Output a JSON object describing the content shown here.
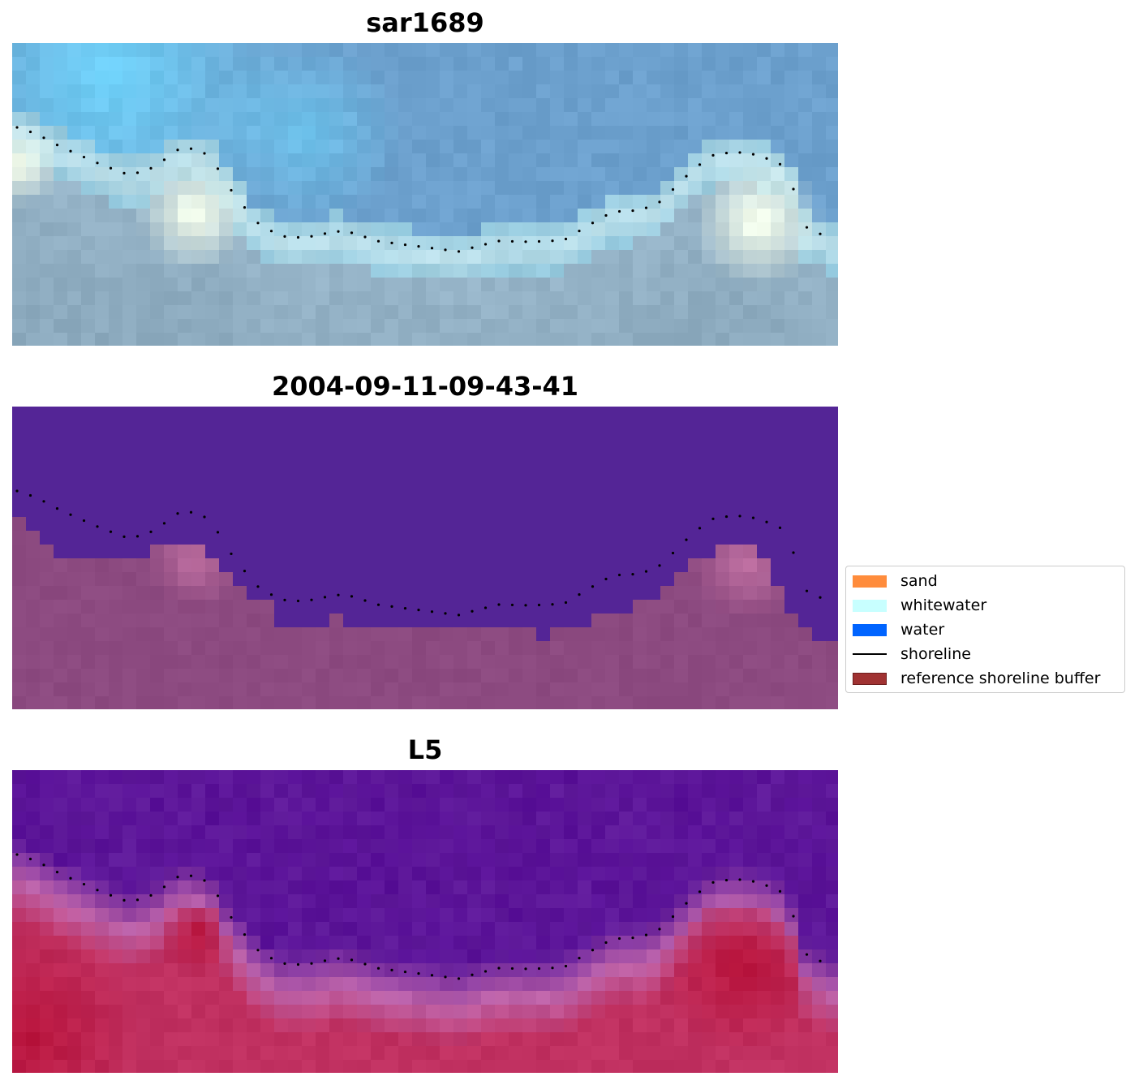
{
  "panels": [
    {
      "title": "sar1689",
      "style": "rgb"
    },
    {
      "title": "2004-09-11-09-43-41",
      "style": "classified"
    },
    {
      "title": "L5",
      "style": "index"
    }
  ],
  "legend": {
    "items": [
      {
        "label": "sand",
        "color": "#ff8c3c",
        "kind": "patch"
      },
      {
        "label": "whitewater",
        "color": "#c8ffff",
        "kind": "patch"
      },
      {
        "label": "water",
        "color": "#0064ff",
        "kind": "patch"
      },
      {
        "label": "shoreline",
        "color": "#000000",
        "kind": "line"
      },
      {
        "label": "reference shoreline buffer",
        "color": "#a03232",
        "kind": "patch"
      }
    ]
  },
  "colors": {
    "classified_water": "#542596",
    "classified_land": "#8c4a80",
    "index_water": "#5f1a9a",
    "index_land": "#c03060"
  }
}
